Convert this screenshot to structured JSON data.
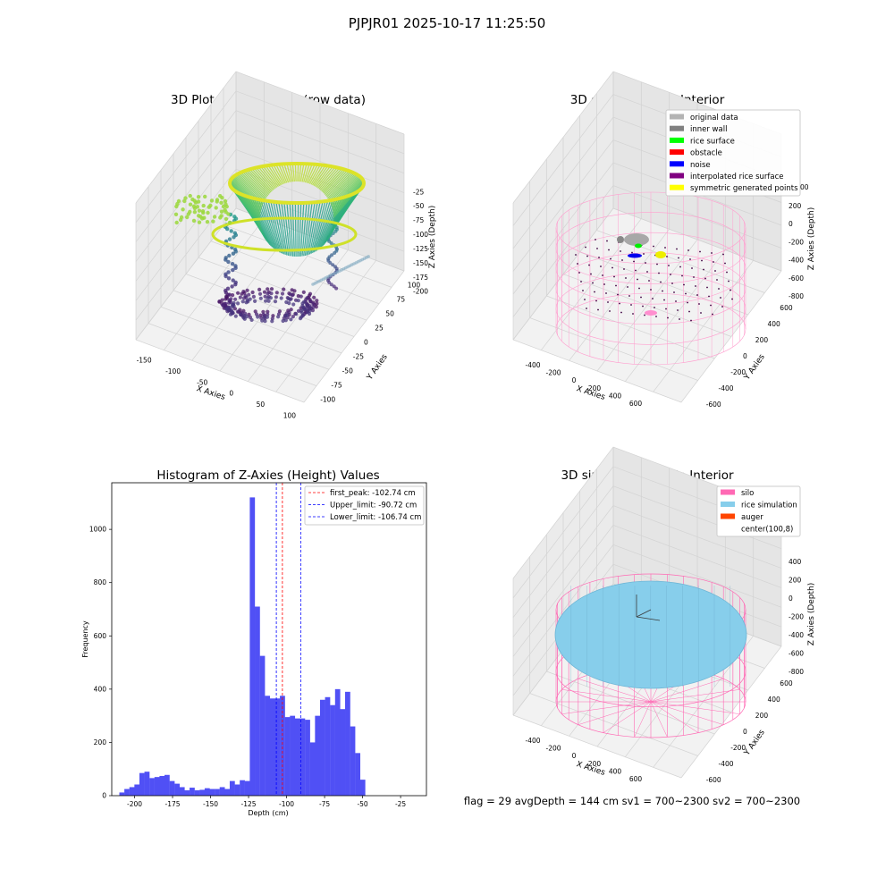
{
  "suptitle": "PJPJR01 2025-10-17 11:25:50",
  "status_text": "flag = 29  avgDepth = 144 cm  sv1 = 700~2300  sv2 = 700~2300",
  "chart_data": [
    {
      "type": "scatter",
      "title": "3D Plot of Silo Interior(row data)",
      "xlabel": "X Axies",
      "ylabel": "Y Axies",
      "zlabel": "Z Axies (Depth)",
      "x_ticks": [
        "-150",
        "-100",
        "-50",
        "0",
        "50",
        "100"
      ],
      "y_ticks": [
        "-100",
        "-75",
        "-50",
        "-25",
        "0",
        "25",
        "50",
        "75",
        "100"
      ],
      "z_ticks": [
        "-25",
        "-50",
        "-75",
        "-100",
        "-125",
        "-150",
        "-175",
        "-200"
      ],
      "colormap": "viridis",
      "grid": true
    },
    {
      "type": "scatter",
      "title": "3D classify of Silo Interior",
      "xlabel": "X Axies",
      "ylabel": "Y Axies",
      "zlabel": "Z Axies (Depth)",
      "x_ticks": [
        "-400",
        "-200",
        "0",
        "200",
        "400",
        "600"
      ],
      "y_ticks": [
        "-600",
        "-400",
        "-200",
        "0",
        "200",
        "400",
        "600"
      ],
      "z_ticks": [
        "200",
        "0",
        "-200",
        "-400",
        "-600",
        "-800"
      ],
      "z_top_partial": "00",
      "legend_position": "top-right",
      "legend": [
        {
          "label": "original data",
          "color": "#b3b3b3"
        },
        {
          "label": "inner wall",
          "color": "#808080"
        },
        {
          "label": "rice surface",
          "color": "#00ff00"
        },
        {
          "label": "obstacle",
          "color": "#ff0000"
        },
        {
          "label": "noise",
          "color": "#0000ff"
        },
        {
          "label": "interpolated rice surface",
          "color": "#800080"
        },
        {
          "label": "symmetric generated points",
          "color": "#ffff00"
        }
      ],
      "grid": true
    },
    {
      "type": "bar",
      "title": "Histogram of Z-Axies (Height) Values",
      "xlabel": "Depth (cm)",
      "ylabel": "Frequency",
      "xlim": [
        -215,
        -8
      ],
      "ylim": [
        0,
        1175
      ],
      "x_ticks": [
        -200,
        -175,
        -150,
        -125,
        -100,
        -75,
        -50,
        -25
      ],
      "y_ticks": [
        0,
        200,
        400,
        600,
        800,
        1000
      ],
      "bin_start": -210,
      "bin_width": 3.3,
      "bar_color": "#5050f5",
      "values": [
        12,
        25,
        32,
        42,
        85,
        90,
        66,
        70,
        74,
        78,
        55,
        45,
        32,
        20,
        30,
        20,
        22,
        28,
        25,
        25,
        32,
        25,
        55,
        42,
        58,
        55,
        1120,
        710,
        525,
        375,
        365,
        365,
        375,
        295,
        300,
        290,
        290,
        285,
        200,
        300,
        360,
        370,
        340,
        400,
        325,
        390,
        260,
        160,
        60
      ],
      "vlines": [
        {
          "label": "first_peak: -102.74 cm",
          "x": -102.74,
          "color": "#ff0000"
        },
        {
          "label": "Upper_limit: -90.72 cm",
          "x": -90.72,
          "color": "#0000ff"
        },
        {
          "label": "Lower_limit: -106.74 cm",
          "x": -106.74,
          "color": "#0000ff"
        }
      ],
      "legend_position": "top-right"
    },
    {
      "type": "surface",
      "title": "3D simulation of Silo Interior",
      "xlabel": "X Axies",
      "ylabel": "Y Axies",
      "zlabel": "Z Axies (Depth)",
      "x_ticks": [
        "-400",
        "-200",
        "0",
        "200",
        "400",
        "600"
      ],
      "y_ticks": [
        "-600",
        "-400",
        "-200",
        "0",
        "200",
        "400",
        "600"
      ],
      "z_ticks": [
        "400",
        "200",
        "0",
        "-200",
        "-400",
        "-600",
        "-800"
      ],
      "legend_position": "top-right",
      "legend": [
        {
          "label": "silo",
          "color": "#ff69b4"
        },
        {
          "label": "rice simulation",
          "color": "#87ceeb"
        },
        {
          "label": "auger",
          "color": "#ff4500"
        },
        {
          "label": "center(100,8)",
          "color": "#ffffff"
        }
      ],
      "grid": true
    }
  ]
}
